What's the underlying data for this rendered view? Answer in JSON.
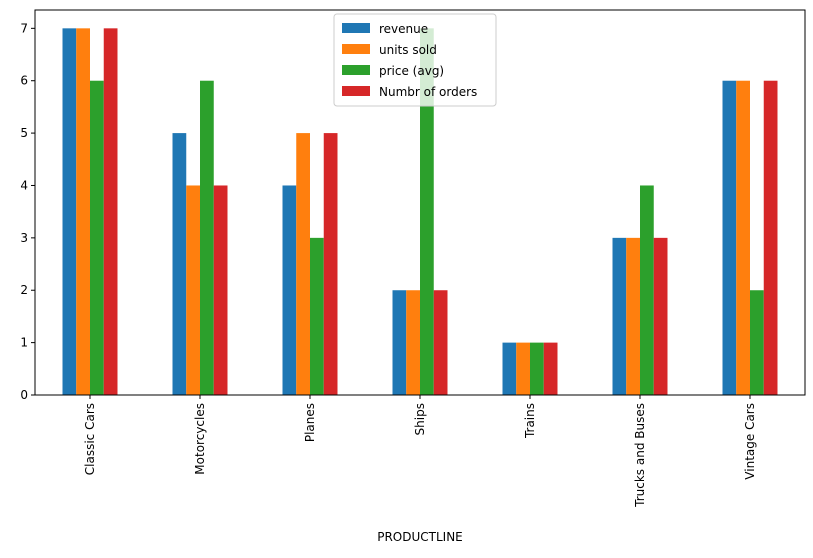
{
  "chart_data": {
    "type": "bar",
    "title": "",
    "xlabel": "PRODUCTLINE",
    "ylabel": "",
    "categories": [
      "Classic Cars",
      "Motorcycles",
      "Planes",
      "Ships",
      "Trains",
      "Trucks and Buses",
      "Vintage Cars"
    ],
    "series": [
      {
        "name": "revenue",
        "color": "#1f77b4",
        "values": [
          7,
          5,
          4,
          2,
          1,
          3,
          6
        ]
      },
      {
        "name": "units sold",
        "color": "#ff7f0e",
        "values": [
          7,
          4,
          5,
          2,
          1,
          3,
          6
        ]
      },
      {
        "name": "price (avg)",
        "color": "#2ca02c",
        "values": [
          6,
          6,
          3,
          7,
          1,
          4,
          2
        ]
      },
      {
        "name": "Numbr of orders",
        "color": "#d62728",
        "values": [
          7,
          4,
          5,
          2,
          1,
          3,
          6
        ]
      }
    ],
    "ylim": [
      0,
      7.35
    ],
    "yticks": [
      0,
      1,
      2,
      3,
      4,
      5,
      6,
      7
    ],
    "grid": false,
    "legend_position": "top-center"
  }
}
